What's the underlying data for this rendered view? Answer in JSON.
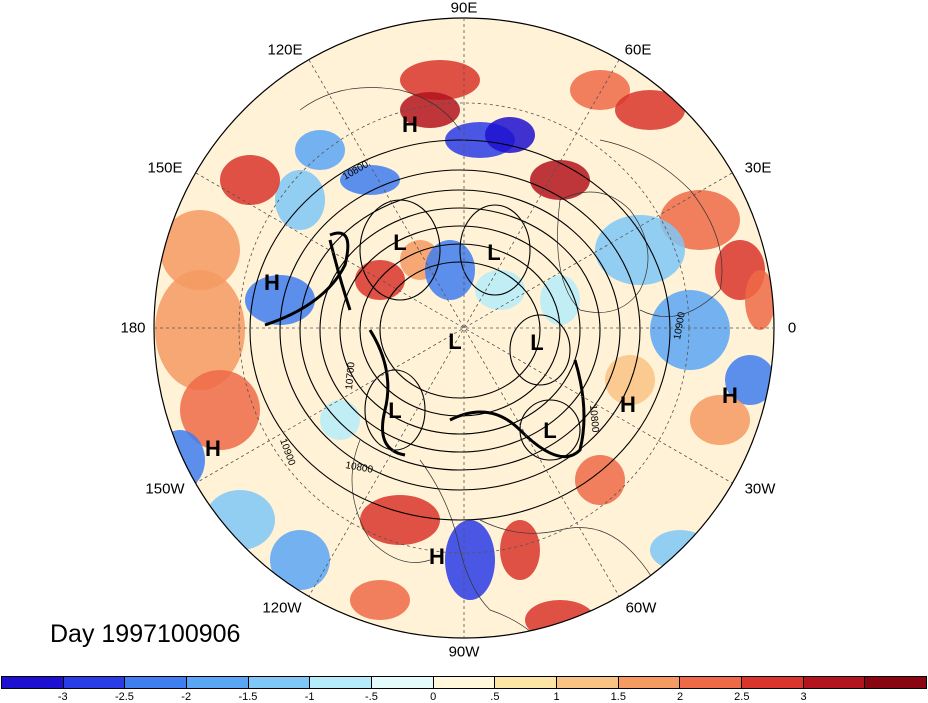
{
  "longitude_labels": {
    "e90": "90E",
    "e60": "60E",
    "e30": "30E",
    "zero": "0",
    "w30": "30W",
    "w60": "60W",
    "w90": "90W",
    "w120": "120W",
    "w150": "150W",
    "d180": "180",
    "e150": "150E",
    "e120": "120E"
  },
  "title": "Day 1997100906",
  "pressure_systems": [
    "H",
    "H",
    "H",
    "H",
    "H",
    "H",
    "L",
    "L",
    "L",
    "L",
    "L",
    "L"
  ],
  "contour_labels": [
    "10800",
    "10800",
    "10900",
    "10900",
    "10700",
    "10800"
  ],
  "colorbar": {
    "colors": [
      "#1e10d0",
      "#2a3ce6",
      "#3f7ef0",
      "#5aa6f5",
      "#7fc7f7",
      "#b6ecf9",
      "#e4fbfc",
      "#fff8dc",
      "#fde5a8",
      "#f9c384",
      "#f59a62",
      "#ee6a46",
      "#d9352c",
      "#b3141e",
      "#8a0512"
    ],
    "ticks": [
      "-3",
      "-2.5",
      "-2",
      "-1.5",
      "-1",
      "-.5",
      "0",
      ".5",
      "1",
      "1.5",
      "2",
      "2.5",
      "3"
    ]
  }
}
